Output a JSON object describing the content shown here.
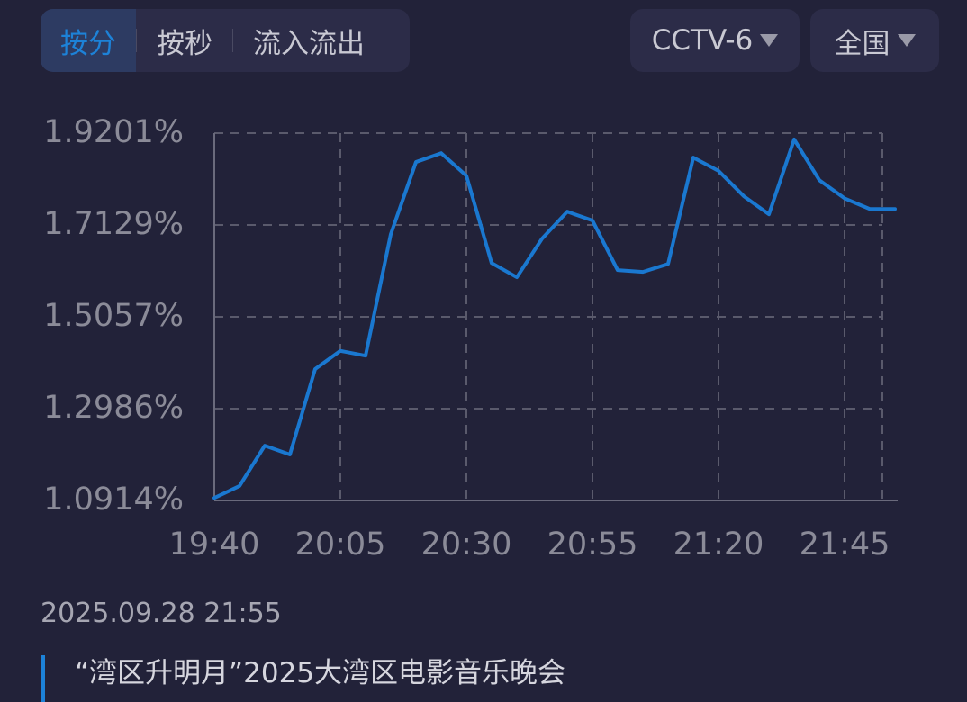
{
  "tabs": [
    "按分",
    "按秒",
    "流入流出"
  ],
  "dropdowns": [
    "CCTV-6",
    "全国"
  ],
  "chart_data": {
    "type": "line",
    "categories": [
      "19:40",
      null,
      null,
      null,
      null,
      "20:05",
      null,
      null,
      null,
      null,
      "20:30",
      null,
      null,
      null,
      null,
      "20:55",
      null,
      null,
      null,
      null,
      "21:20",
      null,
      null,
      null,
      null,
      "21:45",
      null,
      null
    ],
    "series": [
      {
        "color": "#1a78d0",
        "values": [
          1.097,
          1.124,
          1.215,
          1.195,
          1.388,
          1.429,
          1.418,
          1.692,
          1.855,
          1.875,
          1.824,
          1.627,
          1.595,
          1.682,
          1.743,
          1.723,
          1.611,
          1.607,
          1.625,
          1.865,
          1.835,
          1.778,
          1.737,
          1.906,
          1.814,
          1.773,
          1.749,
          1.749
        ]
      }
    ],
    "ylim": [
      1.0914,
      1.9201
    ],
    "yticks": [
      {
        "value": 1.0914,
        "label": "1.0914%"
      },
      {
        "value": 1.2986,
        "label": "1.2986%"
      },
      {
        "value": 1.5057,
        "label": "1.5057%"
      },
      {
        "value": 1.7129,
        "label": "1.7129%"
      },
      {
        "value": 1.9201,
        "label": "1.9201%"
      }
    ],
    "grid": true
  },
  "date": "2025.09.28 21:55",
  "program": "“湾区升明月”2025大湾区电影音乐晚会"
}
